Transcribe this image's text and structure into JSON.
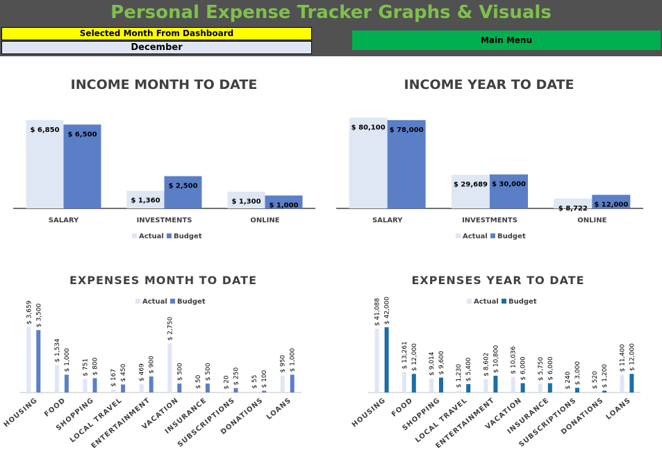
{
  "header": {
    "title": "Personal Expense Tracker Graphs & Visuals",
    "selected_month_label": "Selected Month From Dashboard",
    "selected_month_value": "December",
    "main_menu_label": "Main Menu"
  },
  "colors": {
    "header_bg": "#515151",
    "title": "#7fc04c",
    "actual": "#dfe6f4",
    "budget": "#5b7fc7",
    "budget_ytd_expenses": "#1a6ea8",
    "main_menu": "#00b050",
    "selected_label_bg": "#ffff00"
  },
  "chart_data": [
    {
      "id": "income-mtd",
      "type": "bar",
      "title": "INCOME MONTH TO DATE",
      "categories": [
        "SALARY",
        "INVESTMENTS",
        "ONLINE"
      ],
      "series": [
        {
          "name": "Actual",
          "values": [
            6850,
            1360,
            1300
          ],
          "labels": [
            "$ 6,850",
            "$ 1,360",
            "$ 1,300"
          ]
        },
        {
          "name": "Budget",
          "values": [
            6500,
            2500,
            1000
          ],
          "labels": [
            "$ 6,500",
            "$ 2,500",
            "$ 1,000"
          ]
        }
      ],
      "legend": "bottom",
      "ylim": [
        0,
        7000
      ]
    },
    {
      "id": "income-ytd",
      "type": "bar",
      "title": "INCOME YEAR TO DATE",
      "categories": [
        "SALARY",
        "INVESTMENTS",
        "ONLINE"
      ],
      "series": [
        {
          "name": "Actual",
          "values": [
            80100,
            29689,
            8722
          ],
          "labels": [
            "$ 80,100",
            "$ 29,689",
            "$ 8,722"
          ]
        },
        {
          "name": "Budget",
          "values": [
            78000,
            30000,
            12000
          ],
          "labels": [
            "$ 78,000",
            "$ 30,000",
            "$ 12,000"
          ]
        }
      ],
      "legend": "bottom",
      "ylim": [
        0,
        81000
      ]
    },
    {
      "id": "expenses-mtd",
      "type": "bar",
      "title": "EXPENSES MONTH TO DATE",
      "categories": [
        "HOUSING",
        "FOOD",
        "SHOPPING",
        "LOCAL TRAVEL",
        "ENTERTAINMENT",
        "VACATION",
        "INSURANCE",
        "SUBSCRIPTIONS",
        "DONATIONS",
        "LOANS"
      ],
      "series": [
        {
          "name": "Actual",
          "values": [
            3659,
            1534,
            751,
            167,
            469,
            2750,
            50,
            20,
            55,
            950
          ],
          "labels": [
            "$ 3,659",
            "$ 1,534",
            "$ 751",
            "$ 167",
            "$ 469",
            "$ 2,750",
            "$ 50",
            "$ 20",
            "$ 55",
            "$ 950"
          ]
        },
        {
          "name": "Budget",
          "values": [
            3500,
            1000,
            800,
            450,
            900,
            500,
            500,
            250,
            100,
            1000
          ],
          "labels": [
            "$ 3,500",
            "$ 1,000",
            "$ 800",
            "$ 450",
            "$ 900",
            "$ 500",
            "$ 500",
            "$ 250",
            "$ 100",
            "$ 1,000"
          ]
        }
      ],
      "legend": "top",
      "ylim": [
        0,
        3700
      ]
    },
    {
      "id": "expenses-ytd",
      "type": "bar",
      "title": "EXPENSES YEAR TO DATE",
      "categories": [
        "HOUSING",
        "FOOD",
        "SHOPPING",
        "LOCAL TRAVEL",
        "ENTERTAINMENT",
        "VACATION",
        "INSURANCE",
        "SUBSCRIPTIONS",
        "DONATIONS",
        "LOANS"
      ],
      "series": [
        {
          "name": "Actual",
          "values": [
            41088,
            13261,
            9014,
            1230,
            8602,
            10036,
            5750,
            240,
            520,
            11400
          ],
          "labels": [
            "$ 41,088",
            "$ 13,261",
            "$ 9,014",
            "$ 1,230",
            "$ 8,602",
            "$ 10,036",
            "$ 5,750",
            "$ 240",
            "$ 520",
            "$ 11,400"
          ]
        },
        {
          "name": "Budget",
          "values": [
            42000,
            12000,
            9600,
            5400,
            10800,
            6000,
            6000,
            3000,
            1200,
            12000
          ],
          "labels": [
            "$ 42,000",
            "$ 12,000",
            "$ 9,600",
            "$ 5,400",
            "$ 10,800",
            "$ 6,000",
            "$ 6,000",
            "$ 3,000",
            "$ 1,200",
            "$ 12,000"
          ]
        }
      ],
      "legend": "top",
      "ylim": [
        0,
        42500
      ]
    }
  ]
}
